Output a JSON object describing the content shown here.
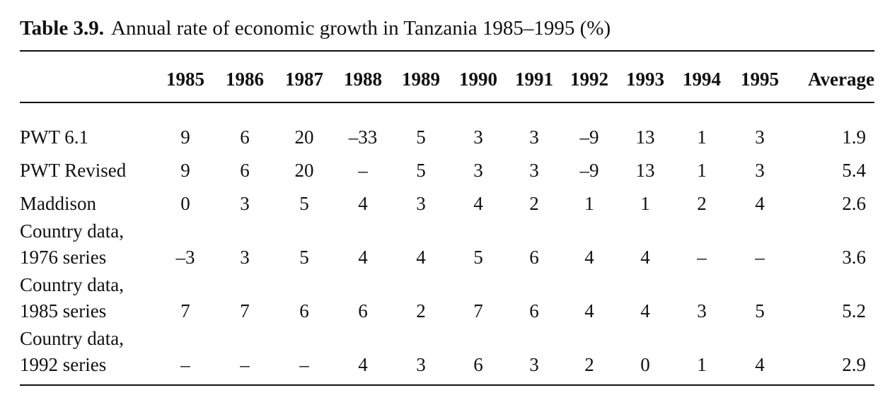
{
  "caption": {
    "label": "Table 3.9.",
    "title": "Annual rate of economic growth in Tanzania 1985–1995 (%)"
  },
  "table": {
    "columns": [
      "1985",
      "1986",
      "1987",
      "1988",
      "1989",
      "1990",
      "1991",
      "1992",
      "1993",
      "1994",
      "1995",
      "Average"
    ],
    "rows": [
      {
        "label": "PWT 6.1",
        "values": [
          "9",
          "6",
          "20",
          "–33",
          "5",
          "3",
          "3",
          "–9",
          "13",
          "1",
          "3",
          "1.9"
        ]
      },
      {
        "label": "PWT Revised",
        "values": [
          "9",
          "6",
          "20",
          "–",
          "5",
          "3",
          "3",
          "–9",
          "13",
          "1",
          "3",
          "5.4"
        ]
      },
      {
        "label": "Maddison",
        "values": [
          "0",
          "3",
          "5",
          "4",
          "3",
          "4",
          "2",
          "1",
          "1",
          "2",
          "4",
          "2.6"
        ]
      },
      {
        "label": "Country data,\n1976 series",
        "values": [
          "–3",
          "3",
          "5",
          "4",
          "4",
          "5",
          "6",
          "4",
          "4",
          "–",
          "–",
          "3.6"
        ]
      },
      {
        "label": "Country data,\n1985 series",
        "values": [
          "7",
          "7",
          "6",
          "6",
          "2",
          "7",
          "6",
          "4",
          "4",
          "3",
          "5",
          "5.2"
        ]
      },
      {
        "label": "Country data,\n1992 series",
        "values": [
          "–",
          "–",
          "–",
          "4",
          "3",
          "6",
          "3",
          "2",
          "0",
          "1",
          "4",
          "2.9"
        ]
      }
    ]
  }
}
